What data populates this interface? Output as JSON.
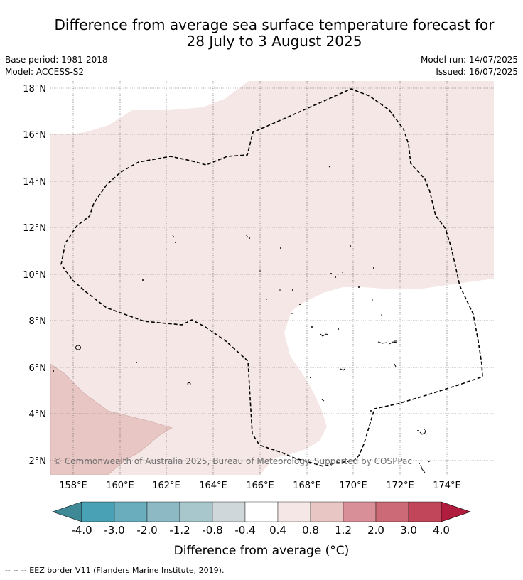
{
  "title": {
    "line1": "Difference from average sea surface temperature forecast for",
    "line2": "28 July to 3 August 2025"
  },
  "meta": {
    "base_period": "Base period: 1981-2018",
    "model": "Model: ACCESS-S2",
    "model_run": "Model run: 14/07/2025",
    "issued": "Issued: 16/07/2025"
  },
  "map": {
    "lat_labels": [
      "18°N",
      "16°N",
      "14°N",
      "12°N",
      "10°N",
      "8°N",
      "6°N",
      "4°N",
      "2°N"
    ],
    "lon_labels": [
      "158°E",
      "160°E",
      "162°E",
      "164°E",
      "166°E",
      "168°E",
      "170°E",
      "172°E",
      "174°E"
    ],
    "copyright": "© Commonwealth of Australia 2025, Bureau of Meteorology. Supported by COSPPac",
    "fill_colors": {
      "band_0.4_0.8": "#f5e7e6",
      "band_0.8_1.2": "#e8c6c3"
    }
  },
  "colorbar": {
    "ticks": [
      "-4.0",
      "-3.0",
      "-2.0",
      "-1.2",
      "-0.8",
      "-0.4",
      "0.4",
      "0.8",
      "1.2",
      "2.0",
      "3.0",
      "4.0"
    ],
    "colors": [
      "#3f8896",
      "#48a1b5",
      "#6aaebd",
      "#8db9c5",
      "#a8c7cd",
      "#d0d7da",
      "#ffffff",
      "#f5e7e6",
      "#e8c6c3",
      "#d98f97",
      "#cc6b77",
      "#c14659",
      "#b01c3d"
    ],
    "label": "Difference from average (°C)"
  },
  "footnote": "-- -- -- EEZ border V11 (Flanders Marine Institute, 2019)."
}
